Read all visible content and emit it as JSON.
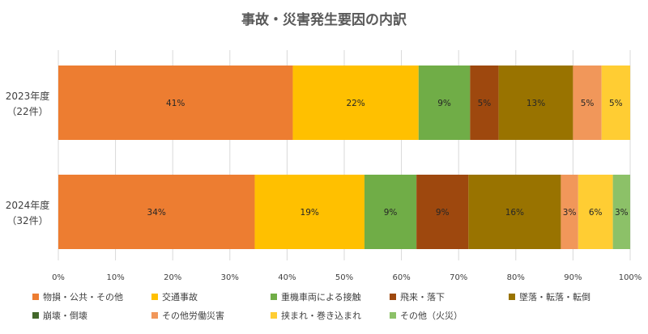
{
  "chart_data": {
    "type": "bar",
    "orientation": "horizontal",
    "stacked": "percent",
    "title": "事故・災害発生要因の内訳",
    "categories": [
      {
        "line1": "2023年度",
        "line2": "（22件）"
      },
      {
        "line1": "2024年度",
        "line2": "（32件）"
      }
    ],
    "xlim": [
      0,
      100
    ],
    "x_ticks": [
      "0%",
      "10%",
      "20%",
      "30%",
      "40%",
      "50%",
      "60%",
      "70%",
      "80%",
      "90%",
      "100%"
    ],
    "grid": "vertical",
    "legend_position": "bottom",
    "series": [
      {
        "name": "物損・公共・その他",
        "color": "#ED7D31",
        "values": [
          41,
          34
        ],
        "labels": [
          "41%",
          "34%"
        ]
      },
      {
        "name": "交通事故",
        "color": "#FFC000",
        "values": [
          22,
          19
        ],
        "labels": [
          "22%",
          "19%"
        ]
      },
      {
        "name": "重機車両による接触",
        "color": "#70AD47",
        "values": [
          9,
          9
        ],
        "labels": [
          "9%",
          "9%"
        ]
      },
      {
        "name": "飛来・落下",
        "color": "#9E480E",
        "values": [
          5,
          9
        ],
        "labels": [
          "5%",
          "9%"
        ]
      },
      {
        "name": "墜落・転落・転倒",
        "color": "#997300",
        "values": [
          13,
          16
        ],
        "labels": [
          "13%",
          "16%"
        ]
      },
      {
        "name": "崩壊・倒壊",
        "color": "#43682B",
        "values": [
          0,
          0
        ],
        "labels": [
          "",
          ""
        ]
      },
      {
        "name": "その他労働災害",
        "color": "#F1975A",
        "values": [
          5,
          3
        ],
        "labels": [
          "5%",
          "3%"
        ]
      },
      {
        "name": "挟まれ・巻き込まれ",
        "color": "#FFCD33",
        "values": [
          5,
          6
        ],
        "labels": [
          "5%",
          "6%"
        ]
      },
      {
        "name": "その他（火災）",
        "color": "#8CC168",
        "values": [
          0,
          3
        ],
        "labels": [
          "",
          "3%"
        ]
      }
    ]
  }
}
